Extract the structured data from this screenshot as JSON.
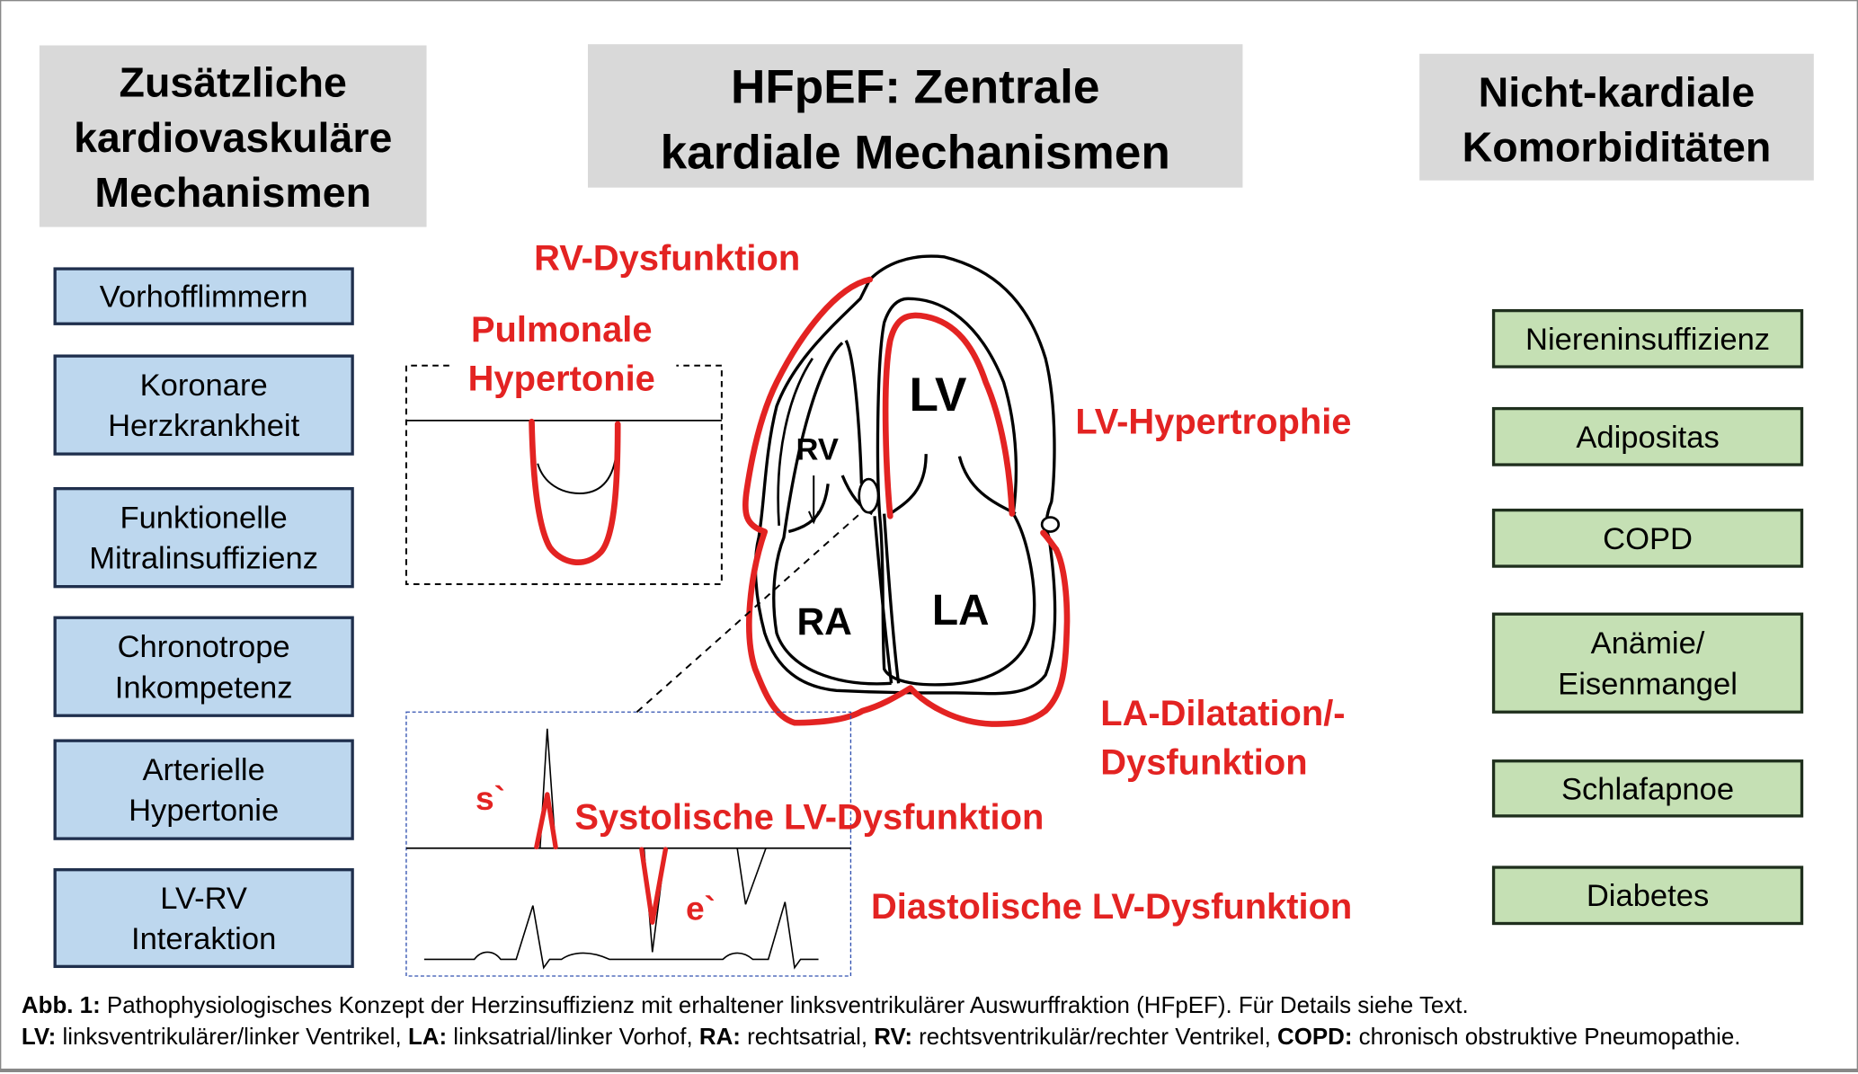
{
  "headers": {
    "left": [
      "Zusätzliche",
      "kardiovaskuläre",
      "Mechanismen"
    ],
    "center": [
      "HFpEF: Zentrale",
      "kardiale Mechanismen"
    ],
    "right": [
      "Nicht-kardiale",
      "Komorbiditäten"
    ]
  },
  "left_boxes": [
    [
      "Vorhofflimmern"
    ],
    [
      "Koronare",
      "Herzkrankheit"
    ],
    [
      "Funktionelle",
      "Mitralinsuffizienz"
    ],
    [
      "Chronotrope",
      "Inkompetenz"
    ],
    [
      "Arterielle",
      "Hypertonie"
    ],
    [
      "LV-RV",
      "Interaktion"
    ]
  ],
  "right_boxes": [
    [
      "Niereninsuffizienz"
    ],
    [
      "Adipositas"
    ],
    [
      "COPD"
    ],
    [
      "Anämie/",
      "Eisenmangel"
    ],
    [
      "Schlafapnoe"
    ],
    [
      "Diabetes"
    ]
  ],
  "red_labels": {
    "rv_dys": "RV-Dysfunktion",
    "pulm": [
      "Pulmonale",
      "Hypertonie"
    ],
    "lv_hyp": "LV-Hypertrophie",
    "la_dil": [
      "LA-Dilatation/-",
      "Dysfunktion"
    ],
    "systolic": "Systolische LV-Dysfunktion",
    "diastolic": "Diastolische LV-Dysfunktion",
    "s_prime": "s`",
    "e_prime": "e`"
  },
  "heart_labels": {
    "lv": "LV",
    "rv": "RV",
    "ra": "RA",
    "la": "LA"
  },
  "caption": {
    "line1_bold": "Abb. 1:",
    "line1": " Pathophysiologisches Konzept der Herzinsuffizienz mit erhaltener linksventrikulärer Auswurffraktion (HFpEF). Für Details siehe Text.",
    "line2": [
      {
        "b": "LV:",
        "t": " linksventrikulärer/linker Ventrikel, "
      },
      {
        "b": "LA:",
        "t": " linksatrial/linker Vorhof, "
      },
      {
        "b": "RA:",
        "t": " rechtsatrial, "
      },
      {
        "b": "RV:",
        "t": " rechtsventrikulär/rechter Ventrikel, "
      },
      {
        "b": "COPD:",
        "t": " chronisch obstruktive Pneumopathie."
      }
    ]
  },
  "colors": {
    "accent_red": "#e32322",
    "left_box_fill": "#bdd7ee",
    "right_box_fill": "#c5e0b4",
    "header_fill": "#d9d9d9"
  }
}
